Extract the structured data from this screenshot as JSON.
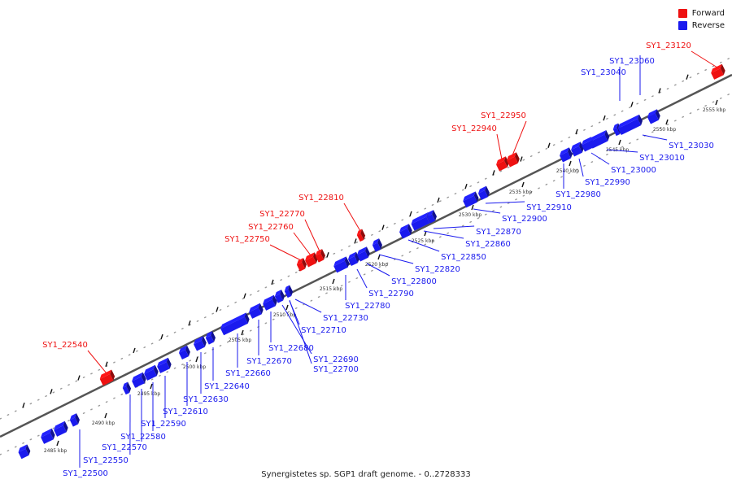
{
  "title": "Synergistetes sp. SGP1 draft genome. - 0..2728333",
  "colors": {
    "forward": "#ee1111",
    "reverse": "#1a1aee",
    "backbone": "#555555"
  },
  "legend": [
    {
      "label": "Forward",
      "color": "#ee1111"
    },
    {
      "label": "Reverse",
      "color": "#1a1aee"
    }
  ],
  "scale_ticks": [
    "2485 kbp",
    "2490 kbp",
    "2495 kbp",
    "2500 kbp",
    "2505 kbp",
    "2510 kbp",
    "2515 kbp",
    "2520 kbp",
    "2525 kbp",
    "2530 kbp",
    "2535 kbp",
    "2540 kbp",
    "2545 kbp",
    "2550 kbp",
    "2555 kbp"
  ],
  "forward_genes": [
    "SY1_22540",
    "SY1_22750",
    "SY1_22760",
    "SY1_22770",
    "SY1_22810",
    "SY1_22940",
    "SY1_22950",
    "SY1_23120"
  ],
  "reverse_genes": [
    "SY1_22500",
    "SY1_22550",
    "SY1_22570",
    "SY1_22580",
    "SY1_22590",
    "SY1_22610",
    "SY1_22630",
    "SY1_22640",
    "SY1_22660",
    "SY1_22670",
    "SY1_22680",
    "SY1_22690",
    "SY1_22700",
    "SY1_22710",
    "SY1_22730",
    "SY1_22780",
    "SY1_22790",
    "SY1_22800",
    "SY1_22820",
    "SY1_22850",
    "SY1_22860",
    "SY1_22870",
    "SY1_22900",
    "SY1_22910",
    "SY1_22980",
    "SY1_22990",
    "SY1_23000",
    "SY1_23010",
    "SY1_23030",
    "SY1_23040",
    "SY1_23060"
  ]
}
